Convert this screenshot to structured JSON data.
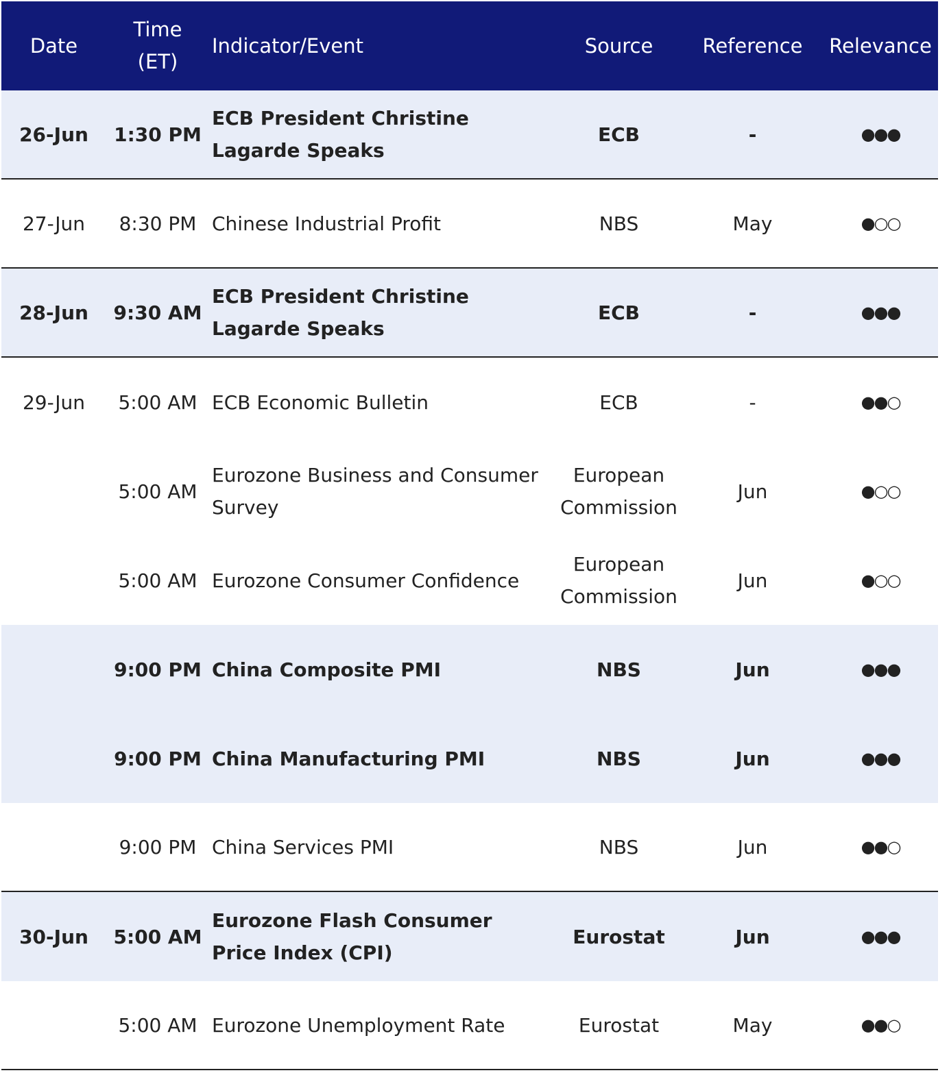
{
  "table": {
    "headers": [
      "Date",
      "Time (ET)",
      "Indicator/Event",
      "Source",
      "Reference",
      "Relevance"
    ],
    "rows": [
      {
        "date": "26-Jun",
        "time": "1:30 PM",
        "event": "ECB President Christine Lagarde Speaks",
        "source": "ECB",
        "reference": "-",
        "relevance": "●●●",
        "highlight": true
      },
      {
        "date": "27-Jun",
        "time": "8:30 PM",
        "event": "Chinese Industrial Profit",
        "source": "NBS",
        "reference": "May",
        "relevance": "●○○",
        "highlight": false
      },
      {
        "date": "28-Jun",
        "time": "9:30 AM",
        "event": "ECB President Christine Lagarde Speaks",
        "source": "ECB",
        "reference": "-",
        "relevance": "●●●",
        "highlight": true
      },
      {
        "date": "29-Jun",
        "time": "5:00 AM",
        "event": "ECB Economic Bulletin",
        "source": "ECB",
        "reference": "-",
        "relevance": "●●○",
        "highlight": false
      },
      {
        "time": "5:00 AM",
        "event": "Eurozone Business and Consumer Survey",
        "source": "European Commission",
        "reference": "Jun",
        "relevance": "●○○",
        "highlight": false
      },
      {
        "time": "5:00 AM",
        "event": "Eurozone Consumer Confidence",
        "source": "European Commission",
        "reference": "Jun",
        "relevance": "●○○",
        "highlight": false
      },
      {
        "time": "9:00 PM",
        "event": "China Composite PMI",
        "source": "NBS",
        "reference": "Jun",
        "relevance": "●●●",
        "highlight": true
      },
      {
        "time": "9:00 PM",
        "event": "China Manufacturing PMI",
        "source": "NBS",
        "reference": "Jun",
        "relevance": "●●●",
        "highlight": true
      },
      {
        "time": "9:00 PM",
        "event": "China Services PMI",
        "source": "NBS",
        "reference": "Jun",
        "relevance": "●●○",
        "highlight": false
      },
      {
        "date": "30-Jun",
        "time": "5:00 AM",
        "event": "Eurozone Flash Consumer Price Index (CPI)",
        "source": "Eurostat",
        "reference": "Jun",
        "relevance": "●●●",
        "highlight": true
      },
      {
        "time": "5:00 AM",
        "event": "Eurozone Unemployment Rate",
        "source": "Eurostat",
        "reference": "May",
        "relevance": "●●○",
        "highlight": false
      }
    ]
  }
}
